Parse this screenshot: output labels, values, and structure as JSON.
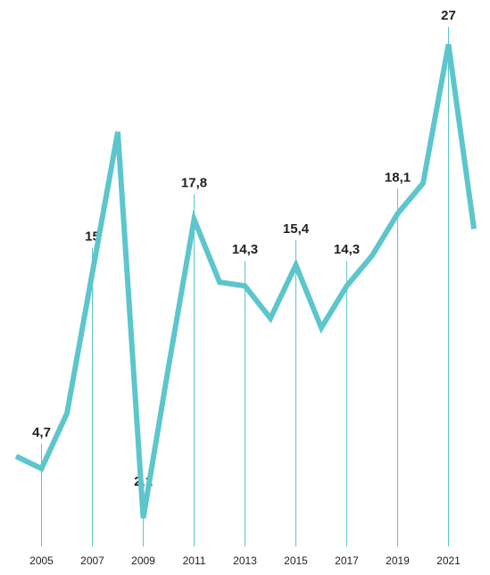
{
  "chart_data": {
    "type": "line",
    "x": [
      2004,
      2005,
      2006,
      2007,
      2008,
      2009,
      2010,
      2011,
      2012,
      2013,
      2014,
      2015,
      2016,
      2017,
      2018,
      2019,
      2020,
      2021,
      2022
    ],
    "xlim": [
      2004,
      2022
    ],
    "xticks": [
      2005,
      2007,
      2009,
      2011,
      2013,
      2015,
      2017,
      2019,
      2021
    ],
    "ylim": [
      0,
      29
    ],
    "series": [
      {
        "color": "#5cc6cc",
        "values": [
          5.35,
          4.7,
          7.6,
          15,
          22.4,
          2.1,
          10.1,
          17.8,
          14.5,
          14.3,
          12.6,
          15.4,
          12.1,
          14.3,
          15.9,
          18.1,
          19.7,
          27,
          17.3
        ],
        "value_labels": [
          null,
          "4,7",
          null,
          "15",
          null,
          "2,1",
          null,
          "17,8",
          null,
          "14,3",
          null,
          "15,4",
          null,
          "14,3",
          null,
          "18,1",
          null,
          "27",
          null
        ]
      }
    ]
  }
}
